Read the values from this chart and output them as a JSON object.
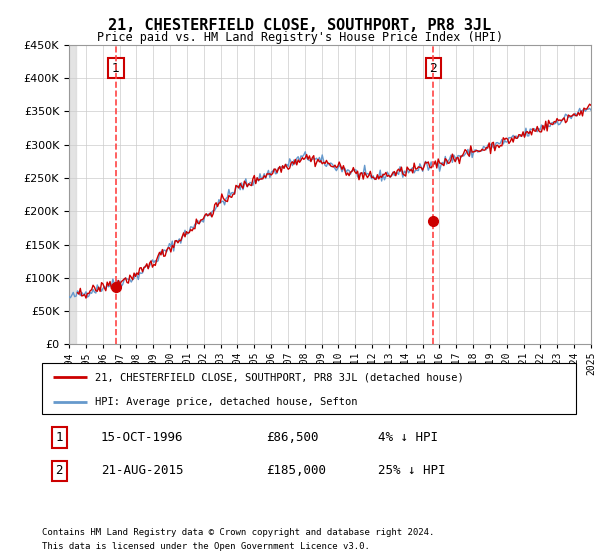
{
  "title": "21, CHESTERFIELD CLOSE, SOUTHPORT, PR8 3JL",
  "subtitle": "Price paid vs. HM Land Registry's House Price Index (HPI)",
  "sale1_year": 1996.79,
  "sale1_price": 86500,
  "sale1_label": "1",
  "sale2_year": 2015.64,
  "sale2_price": 185000,
  "sale2_label": "2",
  "legend_line1": "21, CHESTERFIELD CLOSE, SOUTHPORT, PR8 3JL (detached house)",
  "legend_line2": "HPI: Average price, detached house, Sefton",
  "table_row1": [
    "1",
    "15-OCT-1996",
    "£86,500",
    "4% ↓ HPI"
  ],
  "table_row2": [
    "2",
    "21-AUG-2015",
    "£185,000",
    "25% ↓ HPI"
  ],
  "footnote1": "Contains HM Land Registry data © Crown copyright and database right 2024.",
  "footnote2": "This data is licensed under the Open Government Licence v3.0.",
  "hpi_color": "#6699cc",
  "price_color": "#cc0000",
  "vline_color": "#ff4444",
  "dot_color": "#cc0000",
  "ylim": [
    0,
    450000
  ],
  "yticks": [
    0,
    50000,
    100000,
    150000,
    200000,
    250000,
    300000,
    350000,
    400000,
    450000
  ],
  "xstart": 1994,
  "xend": 2025,
  "grid_color": "#cccccc"
}
